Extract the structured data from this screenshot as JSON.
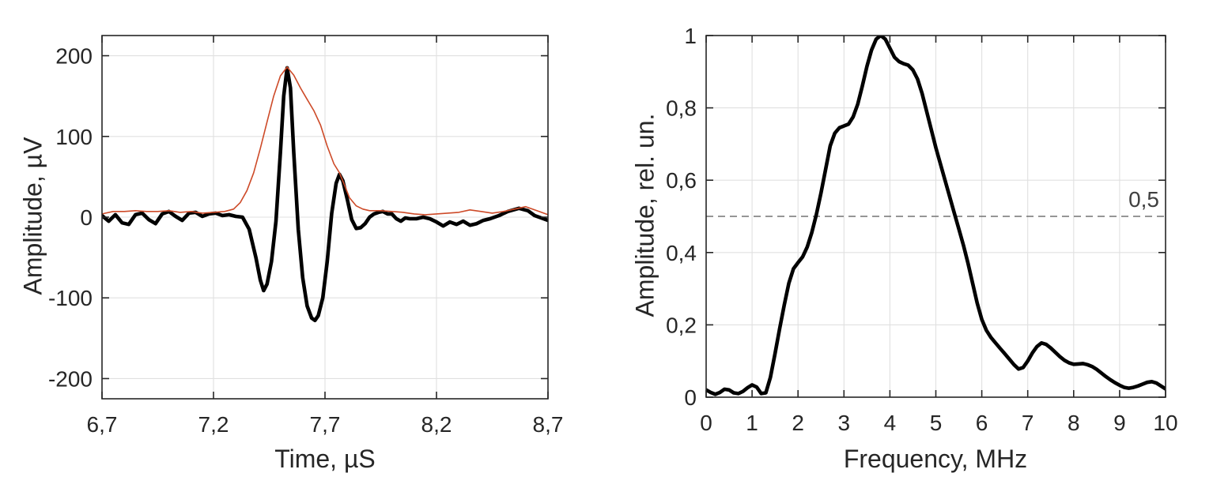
{
  "figure": {
    "background": "#ffffff",
    "axis_color": "#262626",
    "grid_color": "#e0e0e0"
  },
  "chart_data": [
    {
      "id": "time-domain",
      "type": "line",
      "title": "",
      "xlabel": "Time, µS",
      "ylabel": "Amplitude, µV",
      "xlim": [
        6.7,
        8.7
      ],
      "ylim": [
        -225,
        225
      ],
      "grid": true,
      "legend": "none",
      "xticks": [
        6.7,
        7.2,
        7.7,
        8.2,
        8.7
      ],
      "xtick_labels": [
        "6,7",
        "7,2",
        "7,7",
        "8,2",
        "8,7"
      ],
      "yticks": [
        -200,
        -100,
        0,
        100,
        200
      ],
      "ytick_labels": [
        "-200",
        "-100",
        "0",
        "100",
        "200"
      ],
      "series": [
        {
          "name": "signal",
          "color": "#000000",
          "line_width": 4.6,
          "x": [
            6.7,
            6.73,
            6.76,
            6.79,
            6.82,
            6.85,
            6.88,
            6.91,
            6.94,
            6.97,
            7.0,
            7.03,
            7.06,
            7.09,
            7.12,
            7.15,
            7.18,
            7.21,
            7.24,
            7.27,
            7.3,
            7.33,
            7.36,
            7.39,
            7.41,
            7.425,
            7.44,
            7.46,
            7.48,
            7.5,
            7.515,
            7.53,
            7.545,
            7.56,
            7.58,
            7.6,
            7.62,
            7.64,
            7.655,
            7.67,
            7.69,
            7.71,
            7.73,
            7.75,
            7.765,
            7.78,
            7.8,
            7.82,
            7.84,
            7.86,
            7.88,
            7.9,
            7.92,
            7.94,
            7.96,
            7.98,
            8.0,
            8.02,
            8.04,
            8.06,
            8.08,
            8.11,
            8.14,
            8.17,
            8.2,
            8.23,
            8.26,
            8.29,
            8.32,
            8.35,
            8.38,
            8.41,
            8.44,
            8.48,
            8.52,
            8.57,
            8.61,
            8.64,
            8.67,
            8.7
          ],
          "y": [
            2,
            -5,
            3,
            -7,
            -9,
            3,
            5,
            -3,
            -8,
            4,
            7,
            1,
            -4,
            5,
            6,
            1,
            4,
            5,
            2,
            3,
            1,
            0,
            -15,
            -50,
            -78,
            -91,
            -83,
            -55,
            -5,
            80,
            150,
            185,
            160,
            80,
            -15,
            -75,
            -110,
            -125,
            -128,
            -122,
            -100,
            -55,
            5,
            42,
            53,
            45,
            22,
            -3,
            -14,
            -13,
            -8,
            0,
            4,
            6,
            7,
            4,
            4,
            -2,
            -5,
            -1,
            -2,
            -2,
            0,
            -2,
            -6,
            -11,
            -6,
            -9,
            -5,
            -10,
            -8,
            -4,
            -2,
            2,
            7,
            11,
            8,
            2,
            -1,
            -4
          ]
        },
        {
          "name": "envelope",
          "color": "#cd4a28",
          "line_width": 1.6,
          "x": [
            6.7,
            6.75,
            6.8,
            6.85,
            6.9,
            6.95,
            7.0,
            7.05,
            7.1,
            7.15,
            7.2,
            7.25,
            7.29,
            7.32,
            7.35,
            7.38,
            7.41,
            7.44,
            7.47,
            7.5,
            7.53,
            7.56,
            7.59,
            7.62,
            7.65,
            7.68,
            7.71,
            7.74,
            7.765,
            7.79,
            7.81,
            7.84,
            7.87,
            7.9,
            7.95,
            8.0,
            8.05,
            8.1,
            8.15,
            8.2,
            8.25,
            8.3,
            8.35,
            8.4,
            8.45,
            8.5,
            8.55,
            8.6,
            8.65,
            8.7
          ],
          "y": [
            4,
            7,
            7,
            8,
            7,
            7,
            8,
            6,
            7,
            5,
            6,
            7,
            10,
            18,
            33,
            55,
            85,
            118,
            150,
            175,
            186,
            176,
            160,
            146,
            132,
            114,
            88,
            66,
            55,
            38,
            24,
            14,
            10,
            8,
            8,
            7,
            6,
            4,
            3,
            4,
            5,
            6,
            9,
            7,
            5,
            7,
            10,
            13,
            8,
            3
          ]
        }
      ],
      "annotations": []
    },
    {
      "id": "spectrum",
      "type": "line",
      "title": "",
      "xlabel": "Frequency, MHz",
      "ylabel": "Amplitude, rel. un.",
      "xlim": [
        0,
        10
      ],
      "ylim": [
        0,
        1
      ],
      "grid": true,
      "legend": "none",
      "xticks": [
        0,
        1,
        2,
        3,
        4,
        5,
        6,
        7,
        8,
        9,
        10
      ],
      "xtick_labels": [
        "0",
        "1",
        "2",
        "3",
        "4",
        "5",
        "6",
        "7",
        "8",
        "9",
        "10"
      ],
      "yticks": [
        0,
        0.2,
        0.4,
        0.6,
        0.8,
        1
      ],
      "ytick_labels": [
        "0",
        "0,2",
        "0,4",
        "0,6",
        "0,8",
        "1"
      ],
      "series": [
        {
          "name": "spectrum",
          "color": "#000000",
          "line_width": 4.6,
          "x": [
            0,
            0.1,
            0.2,
            0.3,
            0.4,
            0.5,
            0.6,
            0.7,
            0.8,
            0.9,
            1.0,
            1.1,
            1.2,
            1.3,
            1.4,
            1.5,
            1.6,
            1.7,
            1.8,
            1.9,
            2.0,
            2.1,
            2.2,
            2.3,
            2.4,
            2.5,
            2.6,
            2.7,
            2.8,
            2.9,
            3.0,
            3.1,
            3.2,
            3.3,
            3.4,
            3.5,
            3.6,
            3.7,
            3.8,
            3.9,
            4.0,
            4.1,
            4.2,
            4.3,
            4.4,
            4.5,
            4.6,
            4.7,
            4.8,
            4.9,
            5.0,
            5.1,
            5.2,
            5.3,
            5.4,
            5.5,
            5.6,
            5.7,
            5.8,
            5.9,
            6.0,
            6.1,
            6.2,
            6.3,
            6.4,
            6.5,
            6.6,
            6.7,
            6.8,
            6.9,
            7.0,
            7.1,
            7.2,
            7.3,
            7.4,
            7.5,
            7.6,
            7.7,
            7.8,
            7.9,
            8.0,
            8.1,
            8.2,
            8.3,
            8.4,
            8.5,
            8.6,
            8.7,
            8.8,
            8.9,
            9.0,
            9.1,
            9.2,
            9.3,
            9.4,
            9.5,
            9.6,
            9.7,
            9.8,
            9.9,
            10.0
          ],
          "y": [
            0.02,
            0.013,
            0.008,
            0.013,
            0.022,
            0.02,
            0.012,
            0.01,
            0.016,
            0.026,
            0.034,
            0.028,
            0.01,
            0.012,
            0.055,
            0.12,
            0.19,
            0.255,
            0.315,
            0.355,
            0.372,
            0.388,
            0.415,
            0.455,
            0.505,
            0.565,
            0.63,
            0.695,
            0.73,
            0.745,
            0.75,
            0.755,
            0.775,
            0.81,
            0.86,
            0.915,
            0.96,
            0.99,
            1.0,
            0.99,
            0.965,
            0.94,
            0.928,
            0.922,
            0.918,
            0.905,
            0.88,
            0.84,
            0.79,
            0.74,
            0.69,
            0.645,
            0.6,
            0.555,
            0.51,
            0.465,
            0.42,
            0.37,
            0.315,
            0.26,
            0.215,
            0.185,
            0.165,
            0.15,
            0.135,
            0.12,
            0.105,
            0.09,
            0.078,
            0.082,
            0.1,
            0.122,
            0.14,
            0.15,
            0.146,
            0.136,
            0.124,
            0.112,
            0.102,
            0.095,
            0.091,
            0.092,
            0.093,
            0.09,
            0.085,
            0.077,
            0.067,
            0.057,
            0.048,
            0.04,
            0.033,
            0.027,
            0.025,
            0.027,
            0.031,
            0.036,
            0.041,
            0.043,
            0.039,
            0.031,
            0.023
          ]
        }
      ],
      "annotations": [
        {
          "type": "hline",
          "y": 0.5,
          "style": "dashed",
          "color": "#737373",
          "label": "0,5"
        }
      ]
    }
  ]
}
